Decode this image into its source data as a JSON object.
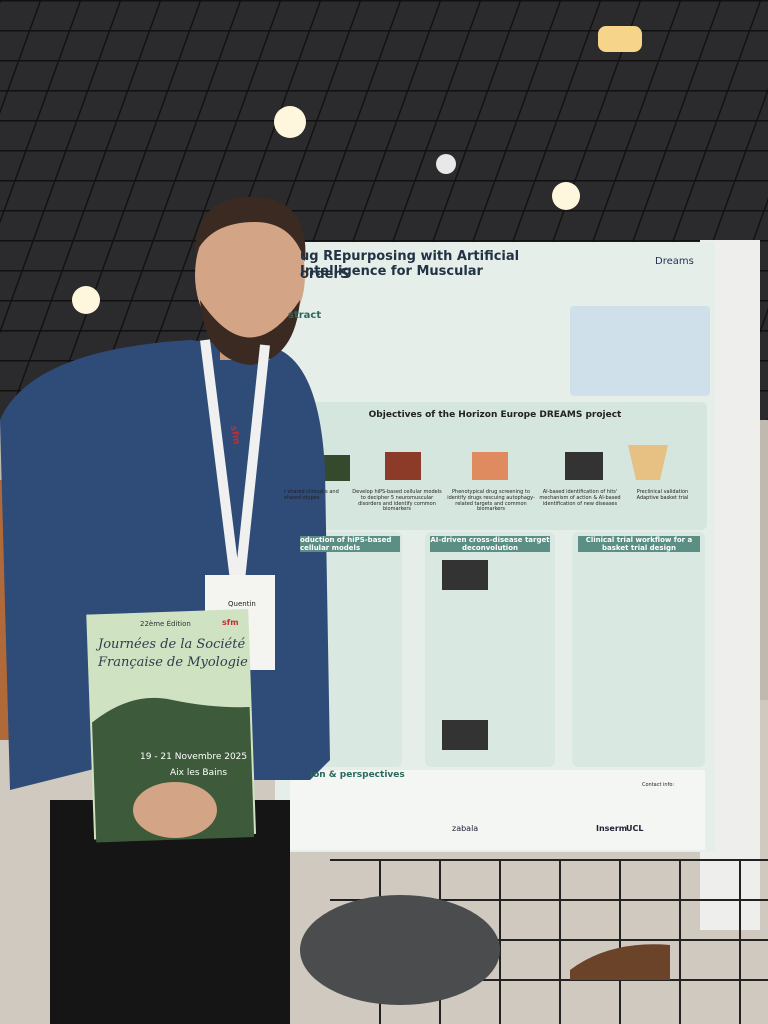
{
  "poster": {
    "title_line1": "ug REpurposing with Artificial Intelligence for Muscular",
    "title_line2": "orderS",
    "logo": "Dreams",
    "abstract_heading": "stract",
    "objectives": {
      "title": "Objectives of the Horizon Europe DREAMS project",
      "items": [
        "r shared clinical s and shared otypes",
        "Develop hiPS-based cellular models to decipher 5 neuromuscular disorders and identify common biomarkers",
        "Phenotypical drug screening to identify drugs rescuing autophagy-related targets and common biomarkers",
        "AI-based identification of hits' mechanism of action & AI-based identification of new diseases",
        "Preclinical validation Adaptive basket trial"
      ]
    },
    "panels": [
      "oduction of hiPS-based cellular models",
      "AI-driven cross-disease target deconvolution",
      "Clinical trial workflow for a basket trial design"
    ],
    "perspectives_heading": "ion & perspectives",
    "contact": "Contact info:",
    "sponsors": [
      "zabala",
      "Inserm",
      "UCL"
    ]
  },
  "badge": {
    "name": "Quentin"
  },
  "lanyard": "sfm",
  "booklet": {
    "edition": "22ème Édition",
    "logo": "sfm",
    "title_line1": "Journées de la Société",
    "title_line2": "Française de Myologie",
    "dates": "19 - 21 Novembre 2025",
    "place": "Aix les Bains"
  }
}
